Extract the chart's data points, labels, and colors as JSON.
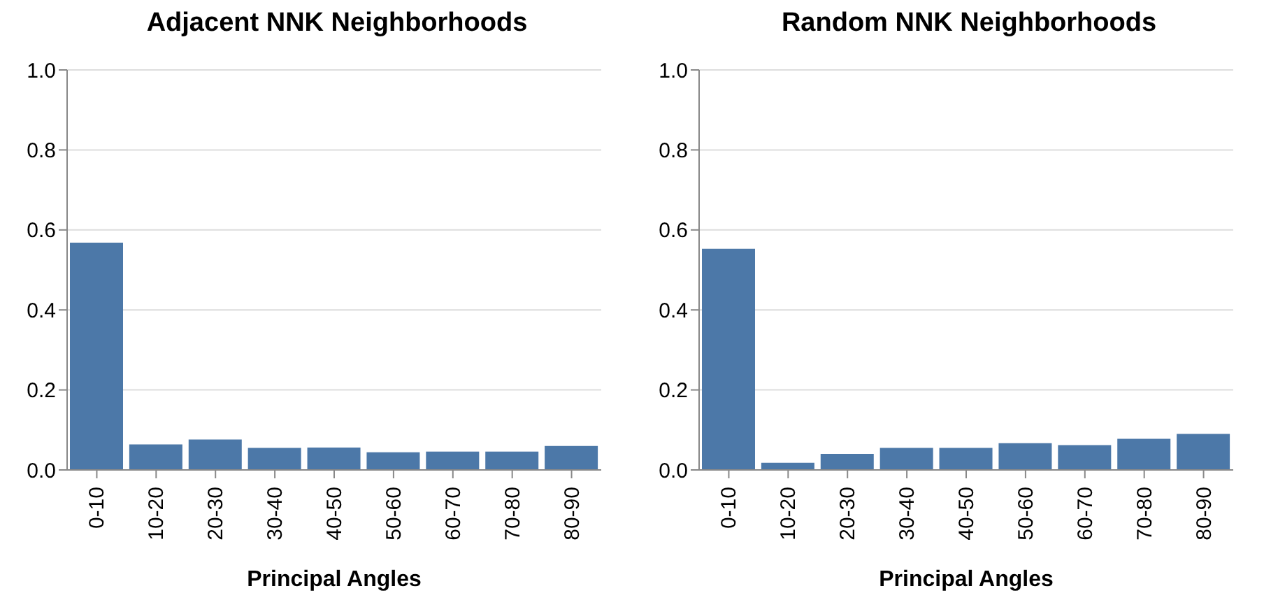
{
  "chart_data": [
    {
      "type": "bar",
      "title": "Adjacent NNK Neighborhoods",
      "xlabel": "Principal Angles",
      "categories": [
        "0-10",
        "10-20",
        "20-30",
        "30-40",
        "40-50",
        "50-60",
        "60-70",
        "70-80",
        "80-90"
      ],
      "values": [
        0.568,
        0.064,
        0.076,
        0.055,
        0.056,
        0.044,
        0.046,
        0.046,
        0.06
      ],
      "color": "#4c78a8",
      "ylim": [
        0,
        1
      ],
      "yticks": [
        {
          "value": 0,
          "label": "0.0"
        },
        {
          "value": 0.2,
          "label": "0.2"
        },
        {
          "value": 0.4,
          "label": "0.4"
        },
        {
          "value": 0.6,
          "label": "0.6"
        },
        {
          "value": 0.8,
          "label": "0.8"
        },
        {
          "value": 1,
          "label": "1.0"
        }
      ],
      "grid": "y"
    },
    {
      "type": "bar",
      "title": "Random NNK Neighborhoods",
      "xlabel": "Principal Angles",
      "categories": [
        "0-10",
        "10-20",
        "20-30",
        "30-40",
        "40-50",
        "50-60",
        "60-70",
        "70-80",
        "80-90"
      ],
      "values": [
        0.553,
        0.018,
        0.04,
        0.055,
        0.055,
        0.067,
        0.062,
        0.078,
        0.09
      ],
      "color": "#4c78a8",
      "ylim": [
        0,
        1
      ],
      "yticks": [
        {
          "value": 0,
          "label": "0.0"
        },
        {
          "value": 0.2,
          "label": "0.2"
        },
        {
          "value": 0.4,
          "label": "0.4"
        },
        {
          "value": 0.6,
          "label": "0.6"
        },
        {
          "value": 0.8,
          "label": "0.8"
        },
        {
          "value": 1,
          "label": "1.0"
        }
      ],
      "grid": "y"
    }
  ]
}
